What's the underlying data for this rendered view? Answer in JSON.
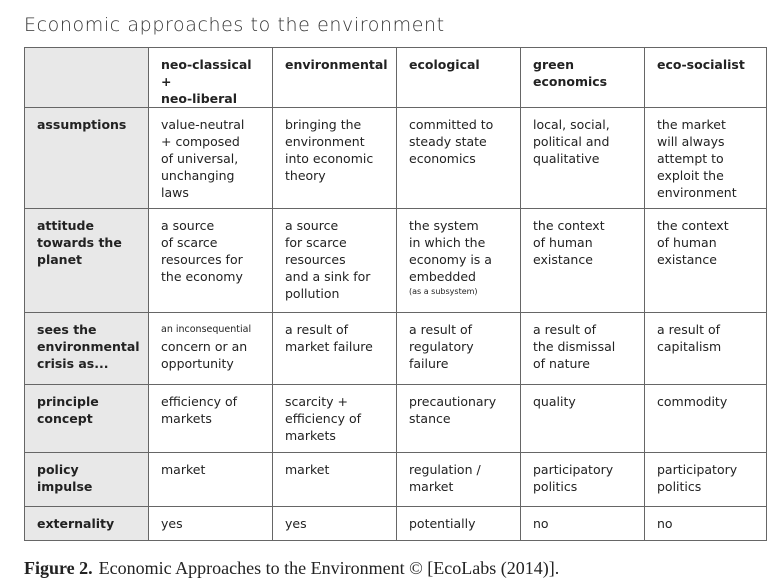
{
  "title": "Economic approaches to the environment",
  "table": {
    "columns": [
      [
        "neo-classical +",
        "neo-liberal"
      ],
      [
        "environmental"
      ],
      [
        "ecological"
      ],
      [
        "green",
        "economics"
      ],
      [
        "eco-socialist"
      ]
    ],
    "rows": [
      {
        "label": [
          "assumptions"
        ],
        "cells": [
          [
            "value-neutral",
            "+ composed",
            "of universal,",
            "unchanging",
            "laws"
          ],
          [
            "bringing the",
            "environment",
            "into economic",
            "theory"
          ],
          [
            "committed to",
            "steady state",
            "economics"
          ],
          [
            "local, social,",
            "political and",
            "qualitative"
          ],
          [
            "the market",
            "will always",
            "attempt to",
            "exploit the",
            "environment"
          ]
        ]
      },
      {
        "label": [
          "attitude",
          "towards the",
          "planet"
        ],
        "cells": [
          [
            "a source",
            "of scarce",
            "resources for",
            "the economy"
          ],
          [
            "a source",
            "for scarce",
            "resources",
            "and a sink for",
            "pollution"
          ],
          [
            "the system",
            "in which the",
            "economy is a",
            "embedded",
            "(as a subsystem)"
          ],
          [
            "the context",
            "of human",
            "existance"
          ],
          [
            "the context",
            "of human",
            "existance"
          ]
        ]
      },
      {
        "label": [
          "sees the",
          "environmental",
          "crisis as..."
        ],
        "cells": [
          [
            "an inconsequential",
            "concern or an",
            "opportunity"
          ],
          [
            "a result of",
            "market failure"
          ],
          [
            "a result of",
            "regulatory",
            "failure"
          ],
          [
            "a result of",
            "the dismissal",
            "of nature"
          ],
          [
            "a result of",
            "capitalism"
          ]
        ]
      },
      {
        "label": [
          "principle",
          "concept"
        ],
        "cells": [
          [
            "efficiency of",
            "markets"
          ],
          [
            "scarcity +",
            "efficiency of",
            "markets"
          ],
          [
            "precautionary",
            "stance"
          ],
          [
            "quality"
          ],
          [
            "commodity"
          ]
        ]
      },
      {
        "label": [
          "policy impulse"
        ],
        "cells": [
          [
            "market"
          ],
          [
            "market"
          ],
          [
            "regulation /",
            "market"
          ],
          [
            "participatory",
            "politics"
          ],
          [
            "participatory",
            "politics"
          ]
        ]
      },
      {
        "label": [
          "externality"
        ],
        "cells": [
          [
            "yes"
          ],
          [
            "yes"
          ],
          [
            "potentially"
          ],
          [
            "no"
          ],
          [
            "no"
          ]
        ]
      }
    ]
  },
  "caption": {
    "label": "Figure 2.",
    "text": "Economic Approaches to the Environment © [EcoLabs (2014)]."
  }
}
